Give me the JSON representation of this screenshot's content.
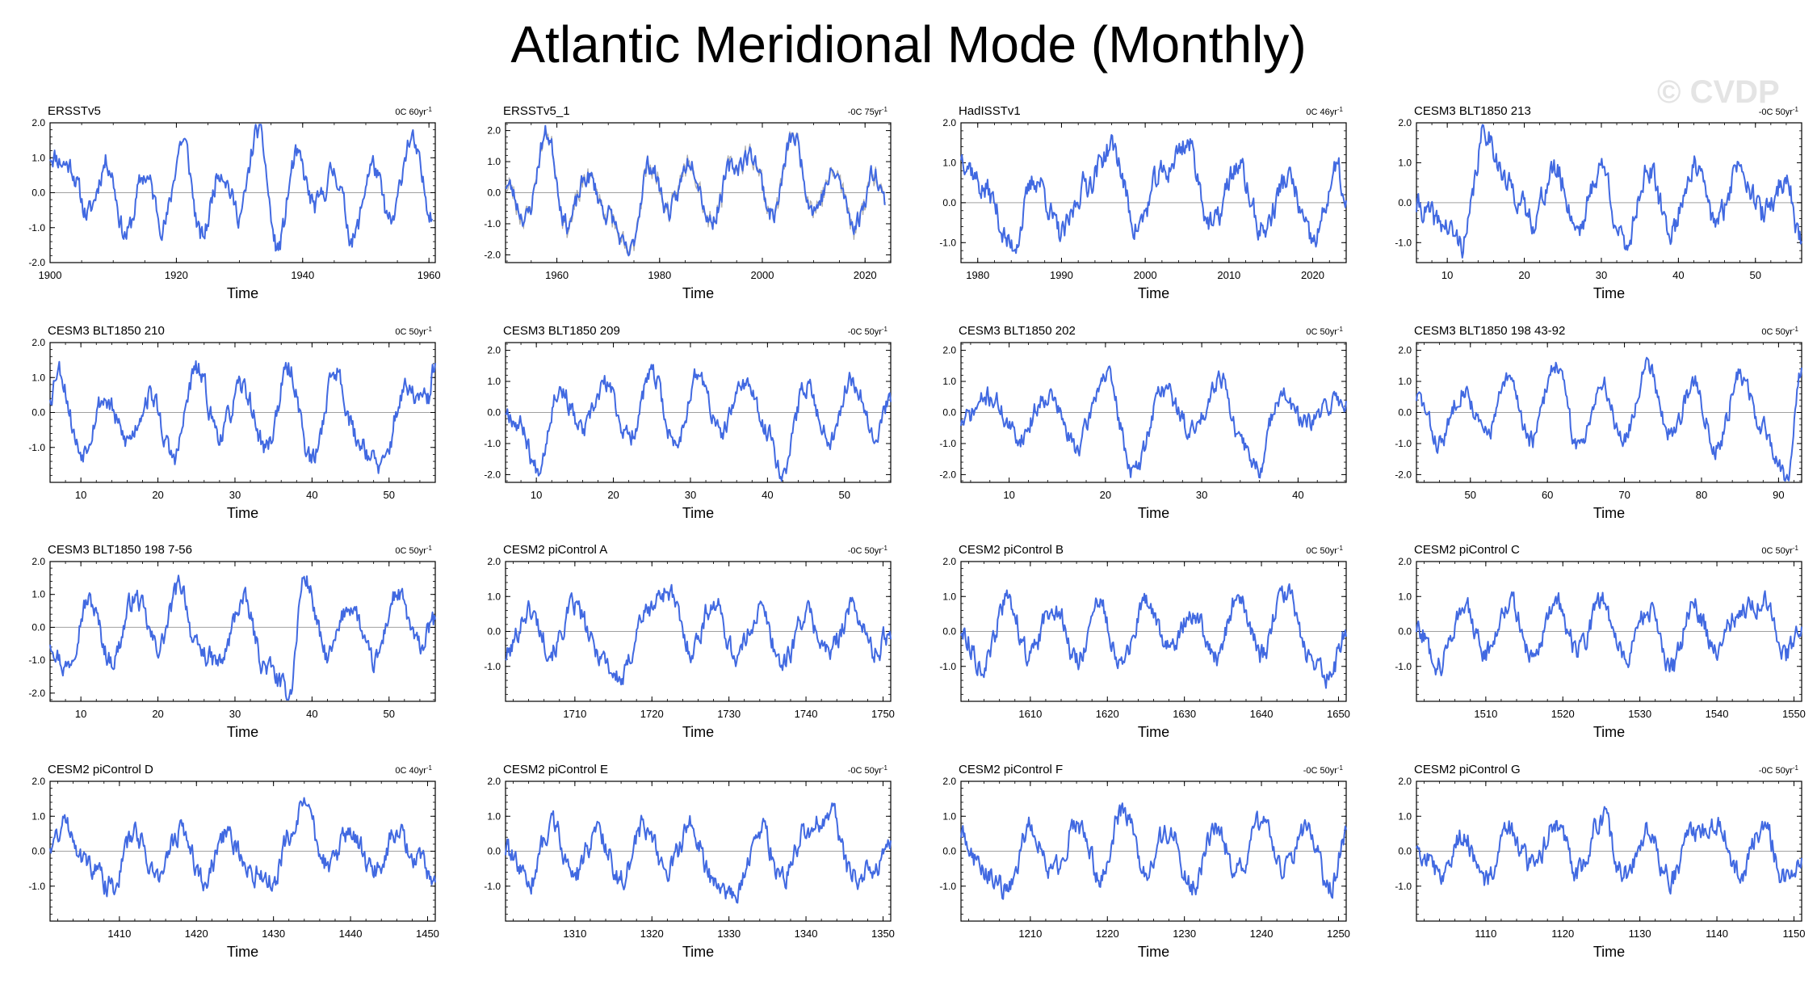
{
  "title": "Atlantic Meridional Mode (Monthly)",
  "watermark": "© CVDP",
  "colors": {
    "line": "#4169e1",
    "zero": "#a0a0a0",
    "obs_envelope": "#888888"
  },
  "chart_data": [
    {
      "type": "line",
      "name": "ERSSTv5",
      "trend": "0C 60yr",
      "trend_sup": "-1",
      "xlabel": "Time",
      "xlim": [
        1900,
        1961
      ],
      "xticks": [
        1900,
        1920,
        1940,
        1960
      ],
      "ylim": [
        -2.0,
        2.0
      ],
      "yticks": [
        -2.0,
        -1.0,
        0.0,
        1.0,
        2.0
      ],
      "seed": 11,
      "series": [
        {
          "x": [
            1900,
            1903,
            1906,
            1909,
            1912,
            1915,
            1918,
            1921,
            1924,
            1927,
            1930,
            1933,
            1936,
            1939,
            1942,
            1945,
            1948,
            1951,
            1954,
            1957,
            1960.5
          ],
          "y": [
            1.1,
            0.8,
            -0.6,
            0.9,
            -1.2,
            0.5,
            -0.9,
            1.5,
            -1.3,
            0.7,
            -0.6,
            1.8,
            -1.6,
            1.0,
            -0.4,
            0.6,
            -1.3,
            0.8,
            -0.9,
            1.5,
            -0.5
          ]
        }
      ]
    },
    {
      "type": "line",
      "name": "ERSSTv5_1",
      "trend": "-0C 75yr",
      "trend_sup": "-1",
      "xlabel": "Time",
      "xlim": [
        1950,
        2025
      ],
      "xticks": [
        1960,
        1980,
        2000,
        2020
      ],
      "ylim": [
        -2.25,
        2.25
      ],
      "yticks": [
        -2.0,
        -1.0,
        0.0,
        1.0,
        2.0
      ],
      "seed": 23,
      "envelope": true,
      "series": [
        {
          "x": [
            1950,
            1954,
            1958,
            1962,
            1966,
            1970,
            1974,
            1978,
            1982,
            1986,
            1990,
            1994,
            1998,
            2002,
            2006,
            2010,
            2014,
            2018,
            2022,
            2024
          ],
          "y": [
            0.3,
            -0.8,
            1.9,
            -1.0,
            0.5,
            -0.7,
            -2.0,
            0.9,
            -0.6,
            1.1,
            -0.9,
            0.8,
            1.2,
            -0.7,
            1.8,
            -0.5,
            0.6,
            -1.0,
            0.7,
            -0.3
          ]
        }
      ]
    },
    {
      "type": "line",
      "name": "HadISSTv1",
      "trend": "0C 46yr",
      "trend_sup": "-1",
      "xlabel": "Time",
      "xlim": [
        1978,
        2024
      ],
      "xticks": [
        1980,
        1990,
        2000,
        2010,
        2020
      ],
      "ylim": [
        -1.5,
        2.0
      ],
      "yticks": [
        -1.0,
        0.0,
        1.0,
        2.0
      ],
      "seed": 37,
      "series": [
        {
          "x": [
            1978,
            1981,
            1984,
            1987,
            1990,
            1993,
            1996,
            1999,
            2002,
            2005,
            2008,
            2011,
            2014,
            2017,
            2020,
            2023,
            2024
          ],
          "y": [
            1.2,
            0.3,
            -1.1,
            0.6,
            -0.8,
            0.5,
            1.4,
            -0.6,
            0.7,
            1.5,
            -0.6,
            0.9,
            -0.7,
            0.6,
            -1.0,
            0.8,
            -0.2
          ]
        }
      ]
    },
    {
      "type": "line",
      "name": "CESM3 BLT1850 213",
      "trend": "-0C 50yr",
      "trend_sup": "-1",
      "xlabel": "Time",
      "xlim": [
        6,
        56
      ],
      "xticks": [
        10,
        20,
        30,
        40,
        50
      ],
      "ylim": [
        -1.5,
        2.0
      ],
      "yticks": [
        -1.0,
        0.0,
        1.0,
        2.0
      ],
      "seed": 41,
      "series": [
        {
          "x": [
            6,
            9,
            12,
            15,
            18,
            21,
            24,
            27,
            30,
            33,
            36,
            39,
            42,
            45,
            48,
            51,
            54,
            56
          ],
          "y": [
            -0.1,
            -0.5,
            -1.0,
            1.8,
            0.4,
            -0.4,
            0.8,
            -0.6,
            0.9,
            -1.1,
            0.8,
            -0.7,
            0.9,
            -0.5,
            1.0,
            -0.3,
            0.6,
            -1.0
          ]
        }
      ]
    },
    {
      "type": "line",
      "name": "CESM3 BLT1850 210",
      "trend": "0C 50yr",
      "trend_sup": "-1",
      "xlabel": "Time",
      "xlim": [
        6,
        56
      ],
      "xticks": [
        10,
        20,
        30,
        40,
        50
      ],
      "ylim": [
        -2.0,
        2.0
      ],
      "yticks": [
        -1.0,
        0.0,
        1.0,
        2.0
      ],
      "seed": 53,
      "series": [
        {
          "x": [
            6,
            7,
            10,
            13,
            16,
            19,
            22,
            25,
            28,
            31,
            34,
            37,
            40,
            43,
            46,
            49,
            52,
            55,
            56
          ],
          "y": [
            0.5,
            1.3,
            -1.1,
            0.4,
            -0.8,
            0.5,
            -1.3,
            1.2,
            -0.6,
            0.7,
            -1.0,
            1.2,
            -1.4,
            1.2,
            -0.8,
            -1.6,
            0.6,
            0.3,
            1.4
          ]
        }
      ]
    },
    {
      "type": "line",
      "name": "CESM3 BLT1850 209",
      "trend": "-0C 50yr",
      "trend_sup": "-1",
      "xlabel": "Time",
      "xlim": [
        6,
        56
      ],
      "xticks": [
        10,
        20,
        30,
        40,
        50
      ],
      "ylim": [
        -2.25,
        2.25
      ],
      "yticks": [
        -2.0,
        -1.0,
        0.0,
        1.0,
        2.0
      ],
      "seed": 67,
      "series": [
        {
          "x": [
            6,
            8,
            10,
            13,
            16,
            19,
            22,
            25,
            28,
            31,
            34,
            37,
            40,
            42,
            45,
            48,
            51,
            54,
            56
          ],
          "y": [
            0.1,
            -0.4,
            -1.8,
            0.8,
            -0.6,
            0.9,
            -0.8,
            1.2,
            -1.0,
            1.2,
            -0.7,
            1.0,
            -0.6,
            -1.9,
            0.9,
            -0.8,
            1.1,
            -0.6,
            0.4
          ]
        }
      ]
    },
    {
      "type": "line",
      "name": "CESM3 BLT1850 202",
      "trend": "0C 50yr",
      "trend_sup": "-1",
      "xlabel": "Time",
      "xlim": [
        5,
        45
      ],
      "xticks": [
        10,
        20,
        30,
        40
      ],
      "ylim": [
        -2.25,
        2.25
      ],
      "yticks": [
        -2.0,
        -1.0,
        0.0,
        1.0,
        2.0
      ],
      "seed": 71,
      "series": [
        {
          "x": [
            5,
            8,
            11,
            14,
            17,
            20,
            23,
            26,
            29,
            32,
            34,
            36,
            38,
            41,
            44,
            45
          ],
          "y": [
            -0.3,
            0.5,
            -0.8,
            0.6,
            -1.1,
            1.2,
            -1.9,
            0.8,
            -0.6,
            1.2,
            -1.0,
            -1.8,
            0.6,
            -0.4,
            0.4,
            0.3
          ]
        }
      ]
    },
    {
      "type": "line",
      "name": "CESM3 BLT1850 198 43-92",
      "trend": "0C 50yr",
      "trend_sup": "-1",
      "xlabel": "Time",
      "xlim": [
        43,
        93
      ],
      "xticks": [
        50,
        60,
        70,
        80,
        90
      ],
      "ylim": [
        -2.25,
        2.25
      ],
      "yticks": [
        -2.0,
        -1.0,
        0.0,
        1.0,
        2.0
      ],
      "seed": 83,
      "series": [
        {
          "x": [
            43,
            46,
            49,
            52,
            55,
            58,
            61,
            64,
            67,
            70,
            73,
            76,
            79,
            82,
            85,
            88,
            91,
            93
          ],
          "y": [
            0.5,
            -1.0,
            0.8,
            -0.7,
            1.0,
            -0.9,
            1.6,
            -1.1,
            0.9,
            -0.8,
            1.6,
            -0.7,
            0.9,
            -1.1,
            1.2,
            -0.6,
            -2.0,
            1.2
          ]
        }
      ]
    },
    {
      "type": "line",
      "name": "CESM3 BLT1850 198 7-56",
      "trend": "0C 50yr",
      "trend_sup": "-1",
      "xlabel": "Time",
      "xlim": [
        6,
        56
      ],
      "xticks": [
        10,
        20,
        30,
        40,
        50
      ],
      "ylim": [
        -2.25,
        2.0
      ],
      "yticks": [
        -2.0,
        -1.0,
        0.0,
        1.0,
        2.0
      ],
      "seed": 97,
      "series": [
        {
          "x": [
            6,
            8,
            11,
            14,
            17,
            20,
            23,
            25,
            28,
            31,
            34,
            37,
            39,
            42,
            45,
            48,
            51,
            54,
            56
          ],
          "y": [
            -0.4,
            -1.2,
            0.8,
            -1.0,
            0.9,
            -0.6,
            1.3,
            -0.7,
            -1.1,
            0.8,
            -1.2,
            -2.0,
            1.5,
            -0.9,
            0.7,
            -1.1,
            1.0,
            -0.6,
            0.2
          ]
        }
      ]
    },
    {
      "type": "line",
      "name": "CESM2 piControl A",
      "trend": "-0C 50yr",
      "trend_sup": "-1",
      "xlabel": "Time",
      "xlim": [
        1701,
        1751
      ],
      "xticks": [
        1710,
        1720,
        1730,
        1740,
        1750
      ],
      "ylim": [
        -2.0,
        2.0
      ],
      "yticks": [
        -1.0,
        0.0,
        1.0,
        2.0
      ],
      "seed": 101,
      "series": [
        {
          "x": [
            1701,
            1704,
            1707,
            1710,
            1713,
            1716,
            1719,
            1722,
            1725,
            1728,
            1731,
            1734,
            1737,
            1740,
            1743,
            1746,
            1749,
            1751
          ],
          "y": [
            -0.7,
            0.6,
            -0.5,
            0.7,
            -0.6,
            -1.4,
            0.5,
            1.2,
            -0.5,
            0.8,
            -0.7,
            0.6,
            -0.9,
            0.5,
            -0.6,
            0.7,
            -0.6,
            0.0
          ]
        }
      ]
    },
    {
      "type": "line",
      "name": "CESM2 piControl B",
      "trend": "0C 50yr",
      "trend_sup": "-1",
      "xlabel": "Time",
      "xlim": [
        1601,
        1651
      ],
      "xticks": [
        1610,
        1620,
        1630,
        1640,
        1650
      ],
      "ylim": [
        -2.0,
        2.0
      ],
      "yticks": [
        -1.0,
        0.0,
        1.0,
        2.0
      ],
      "seed": 113,
      "series": [
        {
          "x": [
            1601,
            1604,
            1607,
            1610,
            1613,
            1616,
            1619,
            1622,
            1625,
            1628,
            1631,
            1634,
            1637,
            1640,
            1643,
            1646,
            1649,
            1651
          ],
          "y": [
            0.0,
            -1.0,
            0.9,
            -0.7,
            0.8,
            -0.8,
            0.7,
            -0.9,
            0.8,
            -0.5,
            0.6,
            -0.8,
            1.0,
            -0.7,
            1.2,
            -0.6,
            -1.3,
            0.0
          ]
        }
      ]
    },
    {
      "type": "line",
      "name": "CESM2 piControl C",
      "trend": "0C 50yr",
      "trend_sup": "-1",
      "xlabel": "Time",
      "xlim": [
        1501,
        1551
      ],
      "xticks": [
        1510,
        1520,
        1530,
        1540,
        1550
      ],
      "ylim": [
        -2.0,
        2.0
      ],
      "yticks": [
        -1.0,
        0.0,
        1.0,
        2.0
      ],
      "seed": 127,
      "series": [
        {
          "x": [
            1501,
            1504,
            1507,
            1510,
            1513,
            1516,
            1519,
            1522,
            1525,
            1528,
            1531,
            1534,
            1537,
            1540,
            1543,
            1546,
            1549,
            1551
          ],
          "y": [
            0.1,
            -0.9,
            0.7,
            -0.6,
            0.9,
            -0.7,
            0.8,
            -0.6,
            0.9,
            -0.7,
            0.6,
            -1.1,
            0.7,
            -0.5,
            0.6,
            0.9,
            -0.7,
            0.3
          ]
        }
      ]
    },
    {
      "type": "line",
      "name": "CESM2 piControl D",
      "trend": "0C 40yr",
      "trend_sup": "-1",
      "xlabel": "Time",
      "xlim": [
        1401,
        1451
      ],
      "xticks": [
        1410,
        1420,
        1430,
        1440,
        1450
      ],
      "ylim": [
        -2.0,
        2.0
      ],
      "yticks": [
        -1.0,
        0.0,
        1.0,
        2.0
      ],
      "seed": 131,
      "series": [
        {
          "x": [
            1401,
            1403,
            1406,
            1409,
            1412,
            1415,
            1418,
            1421,
            1424,
            1427,
            1430,
            1432,
            1434,
            1437,
            1440,
            1443,
            1446,
            1449,
            1451
          ],
          "y": [
            0.2,
            0.8,
            -0.4,
            -1.0,
            0.5,
            -0.7,
            0.6,
            -0.8,
            0.5,
            -0.6,
            -0.8,
            0.4,
            1.2,
            -0.4,
            0.5,
            -0.6,
            0.5,
            -0.3,
            -0.9
          ]
        }
      ]
    },
    {
      "type": "line",
      "name": "CESM2 piControl E",
      "trend": "-0C 50yr",
      "trend_sup": "-1",
      "xlabel": "Time",
      "xlim": [
        1301,
        1351
      ],
      "xticks": [
        1310,
        1320,
        1330,
        1340,
        1350
      ],
      "ylim": [
        -2.0,
        2.0
      ],
      "yticks": [
        -1.0,
        0.0,
        1.0,
        2.0
      ],
      "seed": 139,
      "series": [
        {
          "x": [
            1301,
            1304,
            1307,
            1310,
            1313,
            1316,
            1319,
            1322,
            1325,
            1328,
            1331,
            1334,
            1337,
            1340,
            1343,
            1346,
            1349,
            1351
          ],
          "y": [
            0.0,
            -0.9,
            0.8,
            -0.7,
            0.6,
            -0.8,
            0.7,
            -0.6,
            0.7,
            -0.8,
            -1.2,
            0.6,
            -0.7,
            0.5,
            1.1,
            -0.7,
            -0.6,
            0.3
          ]
        }
      ]
    },
    {
      "type": "line",
      "name": "CESM2 piControl F",
      "trend": "-0C 50yr",
      "trend_sup": "-1",
      "xlabel": "Time",
      "xlim": [
        1201,
        1251
      ],
      "xticks": [
        1210,
        1220,
        1230,
        1240,
        1250
      ],
      "ylim": [
        -2.0,
        2.0
      ],
      "yticks": [
        -1.0,
        0.0,
        1.0,
        2.0
      ],
      "seed": 149,
      "series": [
        {
          "x": [
            1201,
            1204,
            1207,
            1210,
            1213,
            1216,
            1219,
            1222,
            1225,
            1228,
            1231,
            1234,
            1237,
            1240,
            1243,
            1246,
            1249,
            1251
          ],
          "y": [
            0.5,
            -0.6,
            -1.1,
            0.7,
            -0.6,
            0.8,
            -0.7,
            1.2,
            -0.6,
            0.6,
            -1.0,
            0.7,
            -0.6,
            0.8,
            -0.5,
            0.6,
            -1.1,
            0.5
          ]
        }
      ]
    },
    {
      "type": "line",
      "name": "CESM2 piControl G",
      "trend": "-0C 50yr",
      "trend_sup": "-1",
      "xlabel": "Time",
      "xlim": [
        1101,
        1151
      ],
      "xticks": [
        1110,
        1120,
        1130,
        1140,
        1150
      ],
      "ylim": [
        -2.0,
        2.0
      ],
      "yticks": [
        -1.0,
        0.0,
        1.0,
        2.0
      ],
      "seed": 157,
      "series": [
        {
          "x": [
            1101,
            1104,
            1107,
            1110,
            1113,
            1116,
            1119,
            1122,
            1125,
            1128,
            1131,
            1134,
            1137,
            1140,
            1143,
            1146,
            1149,
            1151
          ],
          "y": [
            0.2,
            -0.6,
            0.5,
            -0.9,
            0.6,
            -0.5,
            0.8,
            -0.6,
            1.0,
            -0.7,
            0.6,
            -0.8,
            0.5,
            0.8,
            -0.6,
            0.7,
            -0.8,
            -0.3
          ]
        }
      ]
    }
  ]
}
